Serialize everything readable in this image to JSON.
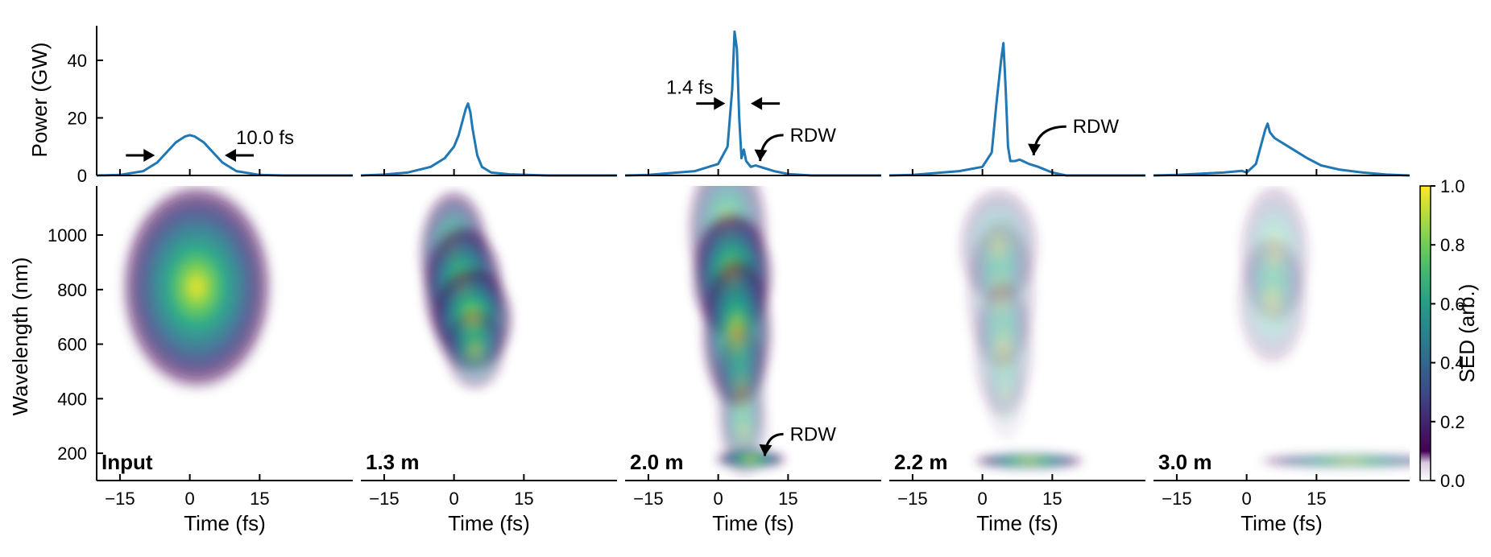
{
  "figure": {
    "colormap": "viridis",
    "line_color": "#1f77b4"
  },
  "chart_data": {
    "type": "line",
    "shared_x": {
      "label": "Time (fs)",
      "ticks": [
        -15,
        0,
        15
      ],
      "range": [
        -20,
        35
      ]
    },
    "power_axis": {
      "label": "Power (GW)",
      "ticks": [
        0,
        20,
        40
      ],
      "range": [
        0,
        52
      ]
    },
    "spectrogram_axis": {
      "label": "Wavelength (nm)",
      "ticks": [
        200,
        400,
        600,
        800,
        1000
      ],
      "range": [
        100,
        1180
      ]
    },
    "colorbar": {
      "label": "SED (arb.)",
      "ticks": [
        "0.0",
        "0.2",
        "0.4",
        "0.6",
        "0.8",
        "1.0"
      ],
      "range": [
        0,
        1
      ]
    },
    "panels": [
      {
        "label": "Input",
        "power": {
          "x": [
            -20,
            -15,
            -10,
            -7,
            -5,
            -3,
            -1,
            0,
            1,
            3,
            5,
            7,
            10,
            15,
            20,
            35
          ],
          "y": [
            0,
            0.2,
            1.5,
            4.5,
            8,
            11.5,
            13.6,
            14,
            13.6,
            11.5,
            8,
            4.5,
            1.5,
            0.2,
            0,
            0
          ]
        },
        "spectrogram_blobs": [
          {
            "t": 1.5,
            "wl": 810,
            "st": 7.5,
            "sw": 175,
            "a": 1.0
          }
        ],
        "annotations": [
          {
            "type": "width-arrows",
            "text": "10.0 fs",
            "y": 7,
            "left": -7.5,
            "right": 7.5
          }
        ]
      },
      {
        "label": "1.3 m",
        "power": {
          "x": [
            -20,
            -15,
            -10,
            -5,
            -2,
            0,
            1,
            2,
            2.5,
            3,
            3.5,
            4,
            5,
            6,
            8,
            12,
            20,
            35
          ],
          "y": [
            0,
            0.3,
            1,
            3,
            6,
            10,
            14,
            20,
            23,
            25,
            22,
            16,
            7,
            3,
            1,
            0.4,
            0,
            0
          ]
        },
        "spectrogram_blobs": [
          {
            "t": 0,
            "wl": 930,
            "st": 3.5,
            "sw": 110,
            "a": 0.75
          },
          {
            "t": 2,
            "wl": 800,
            "st": 4,
            "sw": 110,
            "a": 0.95
          },
          {
            "t": 4,
            "wl": 690,
            "st": 4,
            "sw": 90,
            "a": 0.9
          },
          {
            "t": 4.5,
            "wl": 580,
            "st": 3,
            "sw": 70,
            "a": 0.5
          }
        ],
        "annotations": []
      },
      {
        "label": "2.0 m",
        "power": {
          "x": [
            -20,
            -15,
            -5,
            0,
            2,
            3,
            3.5,
            4,
            4.5,
            5,
            5.5,
            6,
            7,
            8,
            10,
            12,
            15,
            20,
            35
          ],
          "y": [
            0,
            0.2,
            1.5,
            4,
            10,
            30,
            50,
            44,
            20,
            6,
            9,
            5,
            3,
            3.5,
            2.5,
            1.5,
            0.5,
            0,
            0
          ]
        },
        "spectrogram_blobs": [
          {
            "t": 2,
            "wl": 1020,
            "st": 4,
            "sw": 130,
            "a": 0.6
          },
          {
            "t": 3,
            "wl": 850,
            "st": 4,
            "sw": 110,
            "a": 1.0
          },
          {
            "t": 4,
            "wl": 640,
            "st": 3.5,
            "sw": 130,
            "a": 0.85
          },
          {
            "t": 5,
            "wl": 420,
            "st": 2.5,
            "sw": 120,
            "a": 0.4
          },
          {
            "t": 5.5,
            "wl": 280,
            "st": 2.5,
            "sw": 80,
            "a": 0.25
          },
          {
            "t": 7,
            "wl": 178,
            "st": 3.5,
            "sw": 16,
            "a": 0.95
          }
        ],
        "annotations": [
          {
            "type": "width-arrows",
            "text": "1.4 fs",
            "y": 25,
            "left": 1.5,
            "right": 7
          },
          {
            "type": "label-arrow",
            "text": "RDW",
            "target": "power",
            "from": [
              14,
              14
            ],
            "to": [
              9,
              5
            ]
          },
          {
            "type": "label-arrow",
            "text": "RDW",
            "target": "spectrogram",
            "from": [
              14,
              270
            ],
            "to": [
              10,
              190
            ]
          }
        ]
      },
      {
        "label": "2.2 m",
        "power": {
          "x": [
            -20,
            -15,
            -5,
            0,
            2,
            3,
            4,
            4.5,
            5,
            5.5,
            6,
            7,
            8,
            10,
            12,
            15,
            18,
            35
          ],
          "y": [
            0,
            0.2,
            1.5,
            3,
            8,
            25,
            40,
            46,
            30,
            10,
            5,
            5,
            5.5,
            4,
            3,
            1,
            0,
            0
          ]
        },
        "spectrogram_blobs": [
          {
            "t": 3.5,
            "wl": 960,
            "st": 4,
            "sw": 100,
            "a": 0.35
          },
          {
            "t": 4,
            "wl": 780,
            "st": 3.5,
            "sw": 130,
            "a": 0.3
          },
          {
            "t": 4.5,
            "wl": 580,
            "st": 3,
            "sw": 120,
            "a": 0.3
          },
          {
            "t": 5,
            "wl": 420,
            "st": 2,
            "sw": 80,
            "a": 0.12
          },
          {
            "t": 10,
            "wl": 172,
            "st": 5.5,
            "sw": 14,
            "a": 0.85
          }
        ],
        "annotations": [
          {
            "type": "label-arrow",
            "text": "RDW",
            "target": "power",
            "from": [
              18,
              17
            ],
            "to": [
              11,
              7
            ]
          }
        ]
      },
      {
        "label": "3.0 m",
        "power": {
          "x": [
            -20,
            -15,
            -5,
            -1,
            0,
            2,
            3,
            4,
            4.5,
            5,
            5.5,
            6,
            7,
            8,
            10,
            13,
            16,
            20,
            25,
            30,
            35
          ],
          "y": [
            0,
            0.2,
            1,
            1.6,
            1,
            4,
            10,
            16,
            18,
            15,
            14,
            13,
            12,
            11,
            9,
            6,
            3.5,
            2,
            1,
            0.3,
            0
          ]
        },
        "spectrogram_blobs": [
          {
            "t": 6,
            "wl": 930,
            "st": 3.5,
            "sw": 120,
            "a": 0.3
          },
          {
            "t": 5.5,
            "wl": 760,
            "st": 3.5,
            "sw": 110,
            "a": 0.28
          },
          {
            "t": 22,
            "wl": 172,
            "st": 9,
            "sw": 12,
            "a": 0.7
          }
        ],
        "annotations": []
      }
    ]
  }
}
